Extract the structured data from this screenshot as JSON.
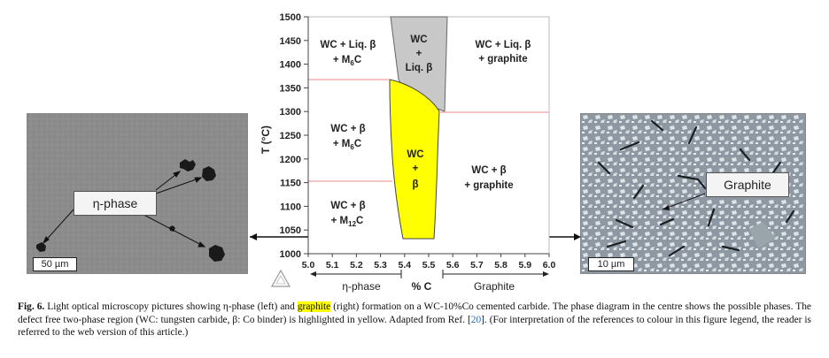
{
  "figure": {
    "left_micrograph": {
      "callout_label": "η-phase",
      "scale_bar_label": "50 µm"
    },
    "right_micrograph": {
      "callout_label": "Graphite",
      "scale_bar_label": "10 µm"
    },
    "phase_diagram": {
      "y_axis_label": "T (°C)",
      "y_ticks": [
        "1500",
        "1450",
        "1400",
        "1350",
        "1300",
        "1250",
        "1200",
        "1150",
        "1100",
        "1050",
        "1000"
      ],
      "x_ticks": [
        "5.0",
        "5.1",
        "5.2",
        "5.3",
        "5.4",
        "5.5",
        "5.6",
        "5.7",
        "5.8",
        "5.9",
        "6.0"
      ],
      "x_axis_label": "% C",
      "left_arrow_label": "η-phase",
      "right_arrow_label": "Graphite",
      "regions": {
        "top_left": [
          "WC + Liq. β",
          "+ M6C"
        ],
        "top_centre": [
          "WC",
          "+",
          "Liq. β"
        ],
        "top_right": [
          "WC + Liq. β",
          "+ graphite"
        ],
        "mid_left": [
          "WC + β",
          "+ M6C"
        ],
        "centre": [
          "WC",
          "+",
          "β"
        ],
        "mid_right": [
          "WC + β",
          "+ graphite"
        ],
        "bottom_left": [
          "WC + β",
          "+ M12C"
        ]
      },
      "colors": {
        "two_phase_region": "#ffff00",
        "liquid_region": "#c8c8c8",
        "boundary_lines": "#f0a0a0"
      }
    },
    "caption": {
      "label": "Fig. 6.",
      "text_1": " Light optical microscopy pictures showing η-phase (left) and ",
      "highlight": "graphite",
      "text_2": " (right) formation on a WC-10%Co cemented carbide. The phase diagram in the centre shows the possible phases. The defect free two-phase region (WC: tungsten carbide, β: Co binder) is highlighted in yellow. Adapted from Ref. [",
      "ref": "20",
      "text_3": "]. (For interpretation of the references to colour in this figure legend, the reader is referred to the web version of this article.)"
    }
  }
}
